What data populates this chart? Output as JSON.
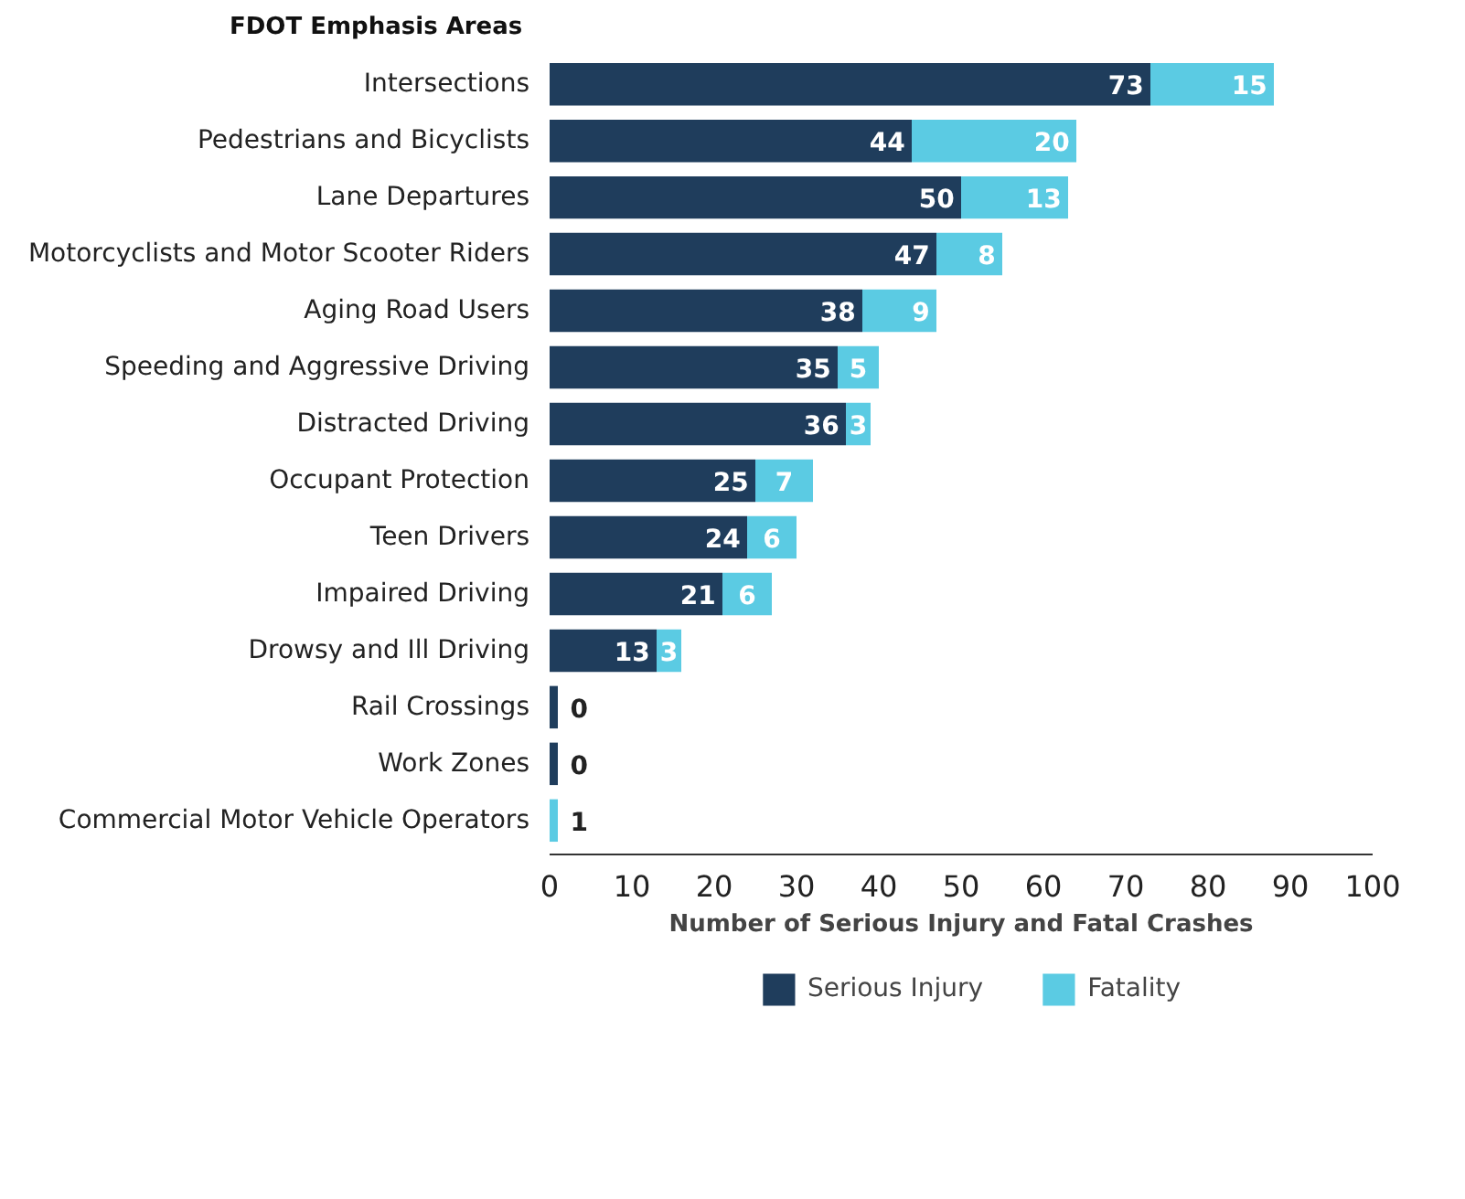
{
  "chart_data": {
    "type": "bar",
    "orientation": "horizontal",
    "stacked": true,
    "ylabel": "FDOT Emphasis Areas",
    "xlabel": "Number of Serious Injury and Fatal Crashes",
    "categories": [
      "Intersections",
      "Pedestrians and Bicyclists",
      "Lane Departures",
      "Motorcyclists and Motor Scooter Riders",
      "Aging Road Users",
      "Speeding and Aggressive Driving",
      "Distracted Driving",
      "Occupant Protection",
      "Teen Drivers",
      "Impaired Driving",
      "Drowsy and Ill Driving",
      "Rail Crossings",
      "Work Zones",
      "Commercial Motor Vehicle Operators"
    ],
    "series": [
      {
        "name": "Serious Injury",
        "color": "#1f3d5c",
        "values": [
          73,
          44,
          50,
          47,
          38,
          35,
          36,
          25,
          24,
          21,
          13,
          1,
          1,
          0
        ],
        "value_labels": [
          "73",
          "44",
          "50",
          "47",
          "38",
          "35",
          "36",
          "25",
          "24",
          "21",
          "13",
          null,
          null,
          null
        ]
      },
      {
        "name": "Fatality",
        "color": "#5bcbe3",
        "values": [
          15,
          20,
          13,
          8,
          9,
          5,
          3,
          7,
          6,
          6,
          3,
          0,
          0,
          1
        ],
        "value_labels": [
          "15",
          "20",
          "13",
          "8",
          "9",
          "5",
          "3",
          "7",
          "6",
          "6",
          "3",
          "0",
          "0",
          "1"
        ]
      }
    ],
    "xlim": [
      0,
      100
    ],
    "xticks": [
      0,
      10,
      20,
      30,
      40,
      50,
      60,
      70,
      80,
      90,
      100
    ],
    "grid": false,
    "legend": "bottom"
  }
}
